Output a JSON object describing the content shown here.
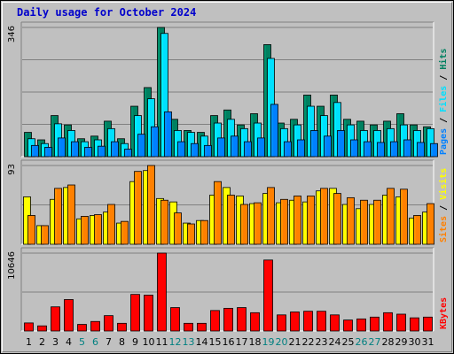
{
  "chart_data": {
    "title": "Daily usage for October 2024",
    "type": "bar",
    "categories": [
      "1",
      "2",
      "3",
      "4",
      "5",
      "6",
      "7",
      "8",
      "9",
      "10",
      "11",
      "12",
      "13",
      "14",
      "15",
      "16",
      "17",
      "18",
      "19",
      "20",
      "21",
      "22",
      "23",
      "24",
      "25",
      "26",
      "27",
      "28",
      "29",
      "30",
      "31"
    ],
    "weekend_days": [
      "5",
      "6",
      "12",
      "13",
      "19",
      "20",
      "26",
      "27"
    ],
    "colors": {
      "background": "#c0c0c0",
      "panel": "#c0c0c0",
      "grid": "#808080",
      "label": "#000000",
      "weekend_label": "#008080",
      "title": "#0000cc",
      "pages": "#0080ff",
      "files": "#00e0ff",
      "hits": "#008060",
      "sites": "#ff8000",
      "visits": "#ffff00",
      "kbytes": "#ff0000",
      "separator": "#000000"
    },
    "panels": [
      {
        "name": "hits-files-pages",
        "max_label": "346",
        "ylim": [
          0,
          346
        ],
        "legend": [
          {
            "text": "Pages",
            "color": "pages"
          },
          {
            "text": " / ",
            "color": "separator"
          },
          {
            "text": "Files",
            "color": "files"
          },
          {
            "text": " / ",
            "color": "separator"
          },
          {
            "text": "Hits",
            "color": "hits"
          }
        ],
        "series": [
          {
            "name": "Hits",
            "color": "hits",
            "values": [
              65,
              45,
              110,
              85,
              48,
              55,
              95,
              48,
              135,
              185,
              346,
              100,
              70,
              65,
              110,
              125,
              85,
              115,
              300,
              90,
              100,
              165,
              135,
              165,
              100,
              95,
              85,
              95,
              115,
              85,
              80
            ]
          },
          {
            "name": "Files",
            "color": "files",
            "values": [
              48,
              35,
              88,
              70,
              40,
              45,
              75,
              35,
              110,
              155,
              330,
              70,
              65,
              55,
              90,
              100,
              75,
              90,
              263,
              75,
              85,
              135,
              110,
              145,
              85,
              70,
              70,
              75,
              85,
              70,
              75
            ]
          },
          {
            "name": "Pages",
            "color": "pages",
            "values": [
              30,
              25,
              50,
              40,
              25,
              28,
              40,
              20,
              60,
              80,
              120,
              40,
              35,
              30,
              50,
              55,
              40,
              50,
              140,
              40,
              45,
              70,
              55,
              70,
              45,
              40,
              38,
              40,
              45,
              38,
              35
            ]
          }
        ]
      },
      {
        "name": "visits-sites",
        "max_label": "93",
        "ylim": [
          0,
          93
        ],
        "legend": [
          {
            "text": "Sites",
            "color": "sites"
          },
          {
            "text": " / ",
            "color": "separator"
          },
          {
            "text": "Visits",
            "color": "visits"
          }
        ],
        "series": [
          {
            "name": "Visits",
            "color": "visits",
            "values": [
              56,
              22,
              53,
              67,
              30,
              34,
              38,
              25,
              74,
              87,
              54,
              50,
              25,
              28,
              58,
              67,
              57,
              48,
              60,
              49,
              52,
              50,
              63,
              66,
              47,
              42,
              47,
              58,
              56,
              31,
              38
            ]
          },
          {
            "name": "Sites",
            "color": "sites",
            "values": [
              34,
              22,
              66,
              70,
              33,
              35,
              47,
              27,
              86,
              93,
              52,
              37,
              24,
              28,
              74,
              58,
              47,
              49,
              67,
              53,
              57,
              57,
              66,
              60,
              55,
              52,
              52,
              66,
              65,
              34,
              48
            ]
          }
        ]
      },
      {
        "name": "kbytes",
        "max_label": "10646",
        "ylim": [
          0,
          10646
        ],
        "legend": [
          {
            "text": "KBytes",
            "color": "kbytes"
          }
        ],
        "series": [
          {
            "name": "KBytes",
            "color": "kbytes",
            "values": [
              1100,
              700,
              3300,
              4300,
              900,
              1300,
              2100,
              1050,
              5000,
              4900,
              10646,
              3200,
              1050,
              1050,
              2800,
              3100,
              3200,
              2500,
              9700,
              2200,
              2600,
              2700,
              2700,
              2200,
              1500,
              1650,
              1900,
              2500,
              2300,
              1800,
              1900
            ]
          }
        ]
      }
    ]
  }
}
